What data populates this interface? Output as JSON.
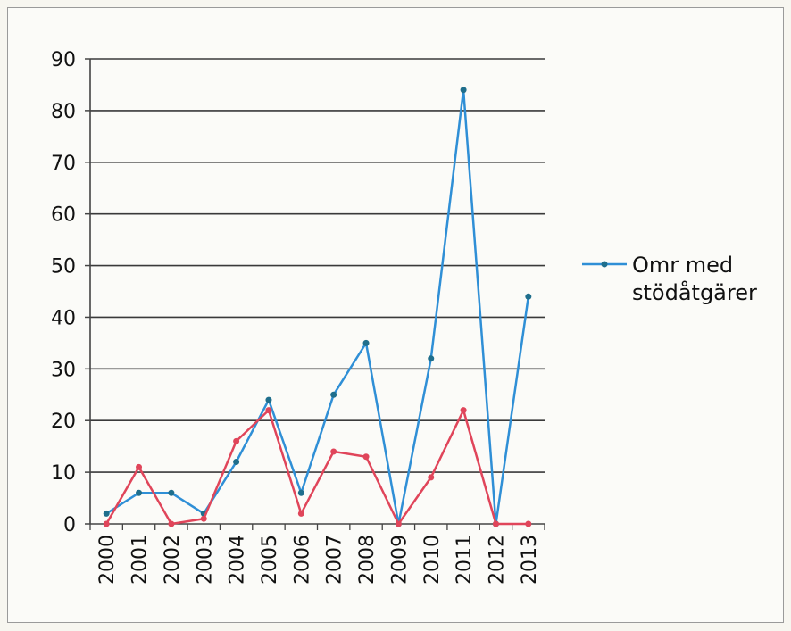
{
  "chart_data": {
    "type": "line",
    "title": "",
    "xlabel": "",
    "ylabel": "",
    "ylim": [
      0,
      90
    ],
    "yticks": [
      0,
      10,
      20,
      30,
      40,
      50,
      60,
      70,
      80,
      90
    ],
    "categories": [
      "2000",
      "2001",
      "2002",
      "2003",
      "2004",
      "2005",
      "2006",
      "2007",
      "2008",
      "2009",
      "2010",
      "2011",
      "2012",
      "2013"
    ],
    "grid": "horizontal",
    "legend_position": "right",
    "series": [
      {
        "name": "Omr med stödåtgärer",
        "legend_lines": [
          "Omr med",
          "stödåtgärer"
        ],
        "color": "#2f8fd6",
        "values": [
          2,
          6,
          6,
          2,
          12,
          24,
          6,
          25,
          35,
          0,
          32,
          84,
          0,
          44
        ]
      },
      {
        "name": "",
        "color": "#e0455a",
        "values": [
          0,
          11,
          0,
          1,
          16,
          22,
          2,
          14,
          13,
          0,
          9,
          22,
          0,
          0
        ]
      }
    ]
  }
}
